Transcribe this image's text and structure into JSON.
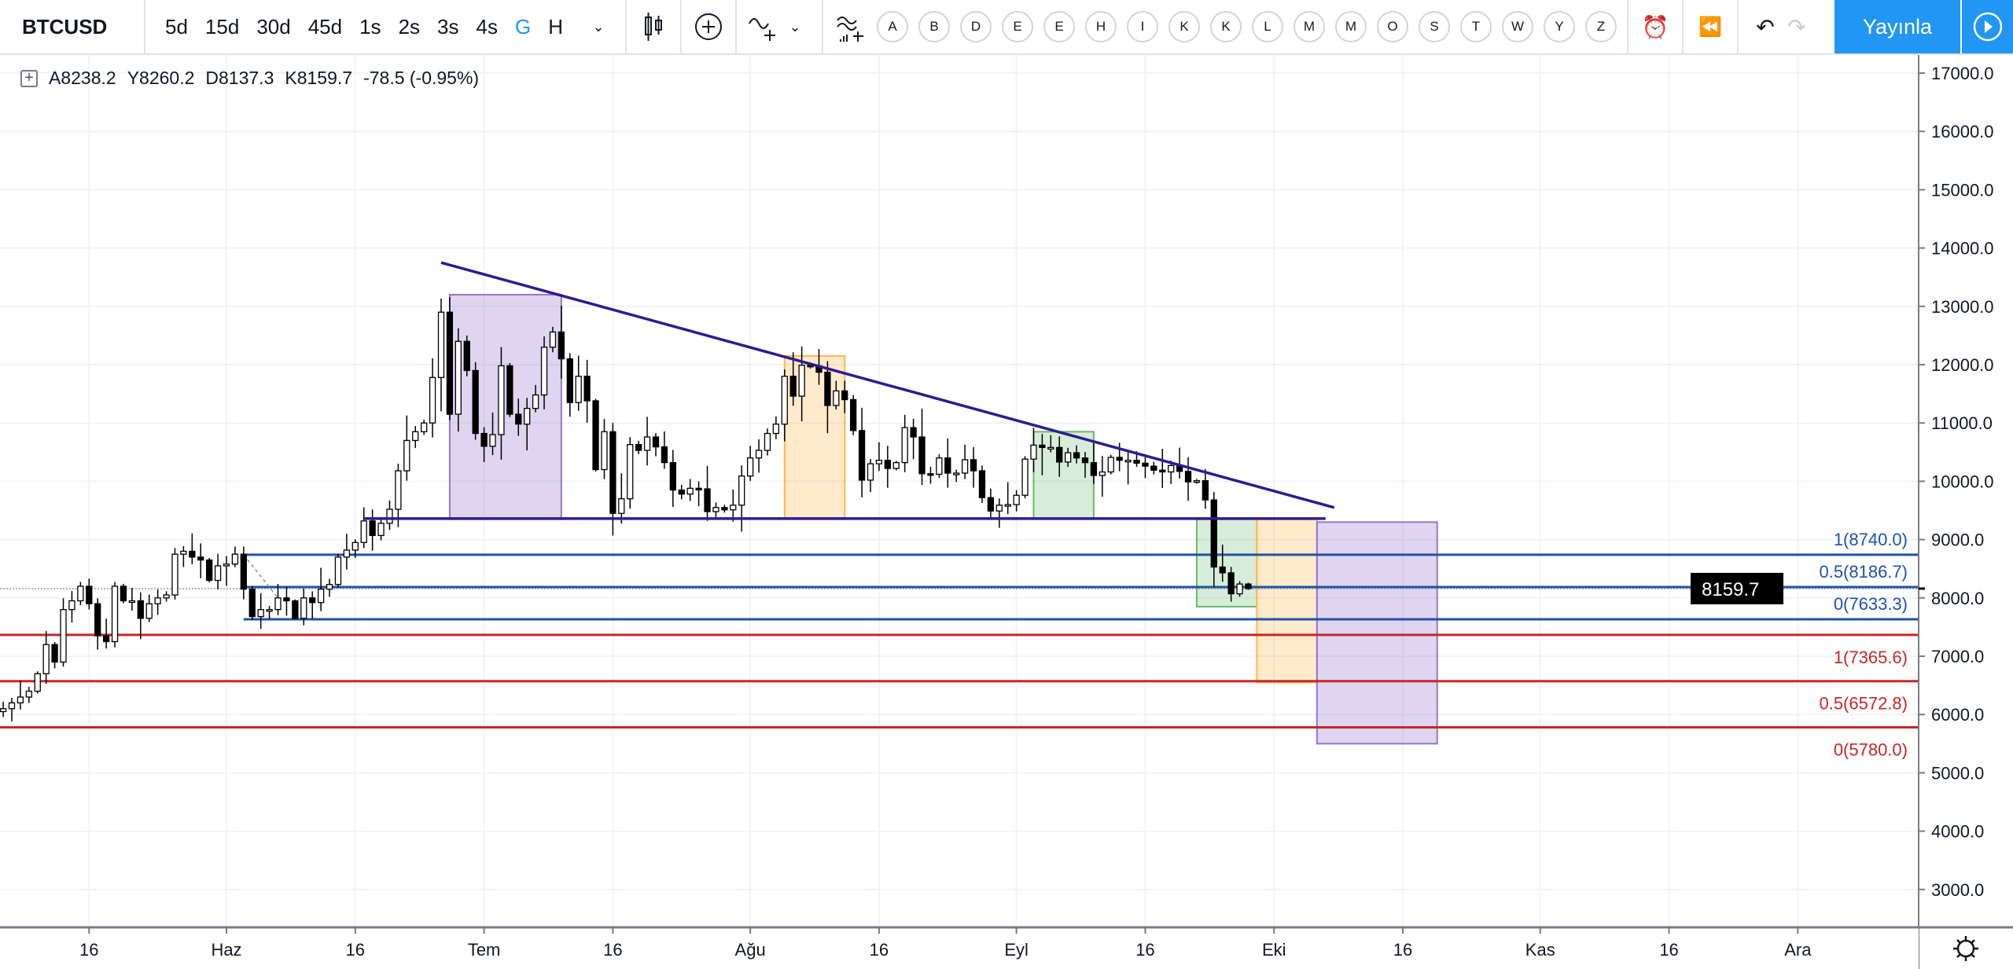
{
  "toolbar": {
    "symbol": "BTCUSD",
    "intervals": [
      "5d",
      "15d",
      "30d",
      "45d",
      "1s",
      "2s",
      "3s",
      "4s",
      "G",
      "H"
    ],
    "active_interval": "G",
    "letters": [
      "A",
      "B",
      "D",
      "E",
      "E",
      "H",
      "I",
      "K",
      "K",
      "L",
      "M",
      "M",
      "O",
      "S",
      "T",
      "W",
      "Y",
      "Z"
    ],
    "publish_label": "Yayınla"
  },
  "legend": {
    "open": "A8238.2",
    "high": "Y8260.2",
    "low": "D8137.3",
    "close": "K8159.7",
    "change": "-78.5 (-0.95%)"
  },
  "chart_data": {
    "type": "candlestick",
    "symbol": "BTCUSD",
    "last_price": "8159.7",
    "ylim": [
      2500,
      17400
    ],
    "y_ticks": [
      "17000.0",
      "16000.0",
      "15000.0",
      "14000.0",
      "13000.0",
      "12000.0",
      "11000.0",
      "10000.0",
      "9000.0",
      "8000.0",
      "7000.0",
      "6000.0",
      "5000.0",
      "4000.0",
      "3000.0"
    ],
    "x_ticks": [
      {
        "label": "16",
        "bar": 11
      },
      {
        "label": "Haz",
        "bar": 27
      },
      {
        "label": "16",
        "bar": 42
      },
      {
        "label": "Tem",
        "bar": 57
      },
      {
        "label": "16",
        "bar": 72
      },
      {
        "label": "Ağu",
        "bar": 88
      },
      {
        "label": "16",
        "bar": 103
      },
      {
        "label": "Eyl",
        "bar": 119
      },
      {
        "label": "16",
        "bar": 134
      },
      {
        "label": "Eki",
        "bar": 149
      },
      {
        "label": "16",
        "bar": 164
      },
      {
        "label": "Kas",
        "bar": 180
      },
      {
        "label": "16",
        "bar": 195
      },
      {
        "label": "Ara",
        "bar": 210
      }
    ],
    "closes": [
      6050,
      6100,
      6200,
      6300,
      6400,
      6700,
      7200,
      6900,
      7800,
      7950,
      8200,
      7900,
      7350,
      7250,
      8200,
      7950,
      7950,
      7650,
      7900,
      8000,
      8050,
      8750,
      8800,
      8700,
      8650,
      8300,
      8550,
      8580,
      8750,
      8150,
      7680,
      7800,
      7800,
      8000,
      7950,
      7650,
      8000,
      7920,
      8150,
      8230,
      8700,
      8820,
      8950,
      9320,
      9070,
      9280,
      9520,
      10180,
      10700,
      10850,
      11000,
      11780,
      12900,
      11150,
      12400,
      11900,
      10820,
      10600,
      10800,
      11980,
      11150,
      10980,
      11250,
      11480,
      12300,
      12560,
      12100,
      11350,
      11800,
      11380,
      10200,
      10850,
      9450,
      9700,
      10630,
      10530,
      10760,
      10590,
      10320,
      9850,
      9780,
      9880,
      9870,
      9480,
      9550,
      9510,
      9590,
      10090,
      10400,
      10530,
      10820,
      10980,
      11800,
      11460,
      11990,
      11980,
      11870,
      11300,
      11550,
      11400,
      10870,
      10020,
      10300,
      10360,
      10220,
      10320,
      10920,
      10760,
      10130,
      10120,
      10400,
      10140,
      10140,
      10370,
      10180,
      9720,
      9490,
      9590,
      9600,
      9760,
      10380,
      10620,
      10580,
      10580,
      10330,
      10490,
      10400,
      10320,
      10100,
      10160,
      10410,
      10360,
      10360,
      10310,
      10260,
      10190,
      10160,
      10270,
      10170,
      9990,
      10010,
      9680,
      8530,
      8430,
      8070,
      8238,
      8159.7
    ],
    "last_candle": {
      "open": 8238.2,
      "high": 8260.2,
      "low": 8137.3,
      "close": 8159.7
    },
    "trendlines": [
      {
        "from": [
          52,
          13750
        ],
        "to": [
          156,
          9550
        ],
        "color": "#311b92"
      },
      {
        "from": [
          43,
          9360
        ],
        "to": [
          155,
          9360
        ],
        "color": "#311b92"
      }
    ],
    "boxes": [
      {
        "x": [
          53,
          66
        ],
        "y": [
          9350,
          13200
        ],
        "color": "purple"
      },
      {
        "x": [
          92,
          99
        ],
        "y": [
          9350,
          12150
        ],
        "color": "orange"
      },
      {
        "x": [
          121,
          128
        ],
        "y": [
          9350,
          10850
        ],
        "color": "green"
      },
      {
        "x": [
          140,
          147
        ],
        "y": [
          7850,
          9350
        ],
        "color": "green"
      },
      {
        "x": [
          147,
          154
        ],
        "y": [
          6550,
          9350
        ],
        "color": "orange"
      },
      {
        "x": [
          154,
          168
        ],
        "y": [
          5500,
          9300
        ],
        "color": "purple"
      }
    ],
    "fib_blue": {
      "start_bar": 29,
      "color": "#1e53a8",
      "levels": [
        {
          "label": "1(8740.0)",
          "price": 8740
        },
        {
          "label": "0.5(8186.7)",
          "price": 8186.7
        },
        {
          "label": "0(7633.3)",
          "price": 7633.3
        }
      ]
    },
    "fib_red": {
      "start_bar": -2,
      "color": "#c62828",
      "levels": [
        {
          "label": "1(7365.6)",
          "price": 7365.6
        },
        {
          "label": "0.5(6572.8)",
          "price": 6572.8
        },
        {
          "label": "0(5780.0)",
          "price": 5780
        }
      ]
    }
  }
}
